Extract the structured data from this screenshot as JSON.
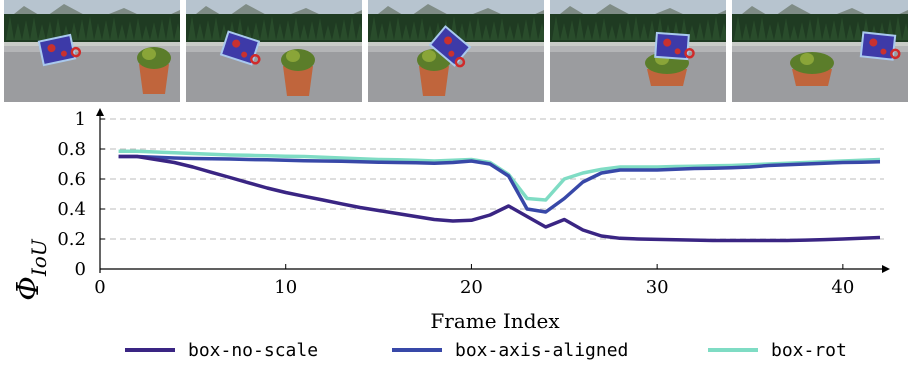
{
  "frames": [
    {
      "object_dx": 0,
      "object_angle": -12
    },
    {
      "object_dx": 0,
      "object_angle": 18
    },
    {
      "object_dx": 0,
      "object_angle": 40
    },
    {
      "object_dx": 0,
      "object_angle": 4
    },
    {
      "object_dx": 0,
      "object_angle": 6
    }
  ],
  "chart_data": {
    "type": "line",
    "xlabel": "Frame Index",
    "ylabel": "ΦIoU",
    "ylabel_main": "Φ",
    "ylabel_sub": "IoU",
    "xlim": [
      0,
      42
    ],
    "ylim": [
      0,
      1
    ],
    "xticks": [
      "0",
      "10",
      "20",
      "30",
      "40"
    ],
    "yticks": [
      "0",
      "0.2",
      "0.4",
      "0.6",
      "0.8",
      "1"
    ],
    "grid": "horizontal-dashed",
    "legend_position": "bottom",
    "series": [
      {
        "name": "box-no-scale",
        "color": "#3a2583",
        "x": [
          1,
          2,
          3,
          4,
          5,
          6,
          7,
          8,
          9,
          10,
          11,
          12,
          13,
          14,
          15,
          16,
          17,
          18,
          19,
          20,
          21,
          22,
          23,
          24,
          25,
          26,
          27,
          28,
          29,
          30,
          31,
          32,
          33,
          34,
          35,
          36,
          37,
          38,
          39,
          40,
          41,
          42
        ],
        "values": [
          0.75,
          0.75,
          0.73,
          0.71,
          0.68,
          0.645,
          0.61,
          0.575,
          0.54,
          0.51,
          0.485,
          0.46,
          0.435,
          0.41,
          0.39,
          0.37,
          0.35,
          0.33,
          0.32,
          0.325,
          0.36,
          0.42,
          0.35,
          0.28,
          0.33,
          0.26,
          0.22,
          0.205,
          0.2,
          0.197,
          0.195,
          0.193,
          0.19,
          0.19,
          0.19,
          0.19,
          0.19,
          0.193,
          0.196,
          0.2,
          0.205,
          0.21
        ]
      },
      {
        "name": "box-axis-aligned",
        "color": "#3848a8",
        "x": [
          1,
          2,
          3,
          4,
          5,
          6,
          7,
          8,
          9,
          10,
          11,
          12,
          13,
          14,
          15,
          16,
          17,
          18,
          19,
          20,
          21,
          22,
          23,
          24,
          25,
          26,
          27,
          28,
          29,
          30,
          31,
          32,
          33,
          34,
          35,
          36,
          37,
          38,
          39,
          40,
          41,
          42
        ],
        "values": [
          0.75,
          0.75,
          0.745,
          0.74,
          0.737,
          0.735,
          0.733,
          0.73,
          0.728,
          0.725,
          0.722,
          0.72,
          0.718,
          0.715,
          0.712,
          0.71,
          0.708,
          0.705,
          0.71,
          0.72,
          0.7,
          0.62,
          0.4,
          0.38,
          0.47,
          0.58,
          0.64,
          0.66,
          0.66,
          0.66,
          0.665,
          0.67,
          0.672,
          0.675,
          0.68,
          0.69,
          0.695,
          0.7,
          0.705,
          0.71,
          0.712,
          0.715
        ]
      },
      {
        "name": "box-rot",
        "color": "#7fdcc4",
        "x": [
          1,
          2,
          3,
          4,
          5,
          6,
          7,
          8,
          9,
          10,
          11,
          12,
          13,
          14,
          15,
          16,
          17,
          18,
          19,
          20,
          21,
          22,
          23,
          24,
          25,
          26,
          27,
          28,
          29,
          30,
          31,
          32,
          33,
          34,
          35,
          36,
          37,
          38,
          39,
          40,
          41,
          42
        ],
        "values": [
          0.785,
          0.785,
          0.78,
          0.775,
          0.77,
          0.765,
          0.76,
          0.758,
          0.755,
          0.752,
          0.75,
          0.745,
          0.74,
          0.735,
          0.73,
          0.728,
          0.725,
          0.72,
          0.725,
          0.73,
          0.71,
          0.63,
          0.47,
          0.46,
          0.6,
          0.64,
          0.665,
          0.68,
          0.68,
          0.68,
          0.683,
          0.685,
          0.688,
          0.69,
          0.695,
          0.7,
          0.705,
          0.71,
          0.715,
          0.72,
          0.725,
          0.73
        ]
      }
    ]
  }
}
